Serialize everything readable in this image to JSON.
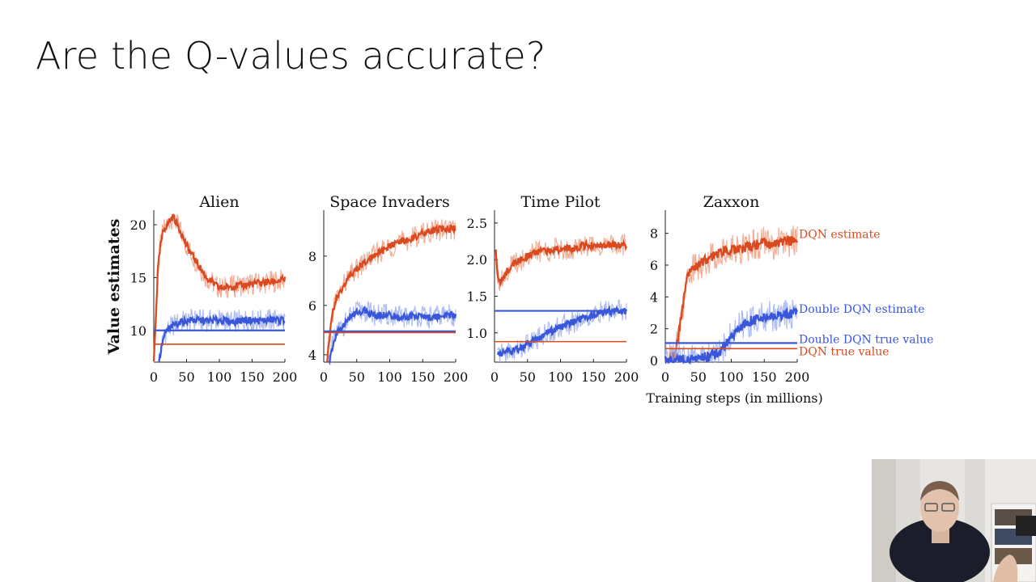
{
  "slide": {
    "title": "Are the Q-values accurate?"
  },
  "colors": {
    "dqn": "#d94a20",
    "dqn_light": "#f0a085",
    "ddqn": "#3b57d9",
    "ddqn_light": "#9fb0ee"
  },
  "chart_data": [
    {
      "type": "line",
      "title": "Alien",
      "ylabel": "Value estimates",
      "xlabel": "",
      "xlim": [
        0,
        200
      ],
      "ylim": [
        7,
        21
      ],
      "xticks": [
        0,
        50,
        100,
        150,
        200
      ],
      "yticks": [
        10,
        15,
        20
      ],
      "series": [
        {
          "name": "DQN estimate",
          "x": [
            0,
            3,
            6,
            10,
            15,
            20,
            25,
            30,
            40,
            50,
            60,
            70,
            80,
            90,
            100,
            120,
            140,
            160,
            180,
            200
          ],
          "values": [
            7,
            11,
            15.5,
            18,
            19.5,
            20,
            20.5,
            20.8,
            19.5,
            18,
            17,
            16,
            15,
            14.5,
            14,
            14.2,
            14.3,
            14.5,
            14.6,
            14.8
          ]
        },
        {
          "name": "Double DQN estimate",
          "x": [
            8,
            12,
            16,
            20,
            30,
            40,
            60,
            80,
            100,
            120,
            140,
            160,
            180,
            200
          ],
          "values": [
            7,
            8.5,
            9.5,
            10,
            10.5,
            10.8,
            11,
            10.9,
            11,
            10.8,
            11,
            10.9,
            11,
            11
          ]
        },
        {
          "name": "Double DQN true value",
          "x": [
            0,
            200
          ],
          "values": [
            10,
            10
          ]
        },
        {
          "name": "DQN true value",
          "x": [
            0,
            200
          ],
          "values": [
            8.7,
            8.7
          ]
        }
      ]
    },
    {
      "type": "line",
      "title": "Space Invaders",
      "ylabel": "",
      "xlabel": "",
      "xlim": [
        0,
        200
      ],
      "ylim": [
        3.7,
        9.7
      ],
      "xticks": [
        0,
        50,
        100,
        150,
        200
      ],
      "yticks": [
        4,
        6,
        8
      ],
      "series": [
        {
          "name": "DQN estimate",
          "x": [
            5,
            8,
            12,
            16,
            20,
            30,
            40,
            60,
            80,
            100,
            120,
            140,
            160,
            180,
            200
          ],
          "values": [
            3.7,
            4.5,
            5.5,
            6,
            6.3,
            6.8,
            7.2,
            7.7,
            8.1,
            8.4,
            8.6,
            8.8,
            9,
            9.1,
            9.1
          ]
        },
        {
          "name": "Double DQN estimate",
          "x": [
            8,
            12,
            16,
            20,
            30,
            40,
            50,
            60,
            70,
            80,
            100,
            120,
            140,
            160,
            180,
            200
          ],
          "values": [
            3.7,
            4.2,
            4.6,
            4.9,
            5.2,
            5.5,
            5.7,
            5.8,
            5.7,
            5.6,
            5.6,
            5.5,
            5.6,
            5.5,
            5.6,
            5.6
          ]
        },
        {
          "name": "Double DQN true value",
          "x": [
            0,
            200
          ],
          "values": [
            4.95,
            4.95
          ]
        },
        {
          "name": "DQN true value",
          "x": [
            0,
            200
          ],
          "values": [
            4.9,
            4.9
          ]
        }
      ]
    },
    {
      "type": "line",
      "title": "Time Pilot",
      "ylabel": "",
      "xlabel": "",
      "xlim": [
        0,
        200
      ],
      "ylim": [
        0.6,
        2.62
      ],
      "xticks": [
        0,
        50,
        100,
        150,
        200
      ],
      "yticks": [
        1.0,
        1.5,
        2.0,
        2.5
      ],
      "series": [
        {
          "name": "DQN estimate",
          "x": [
            2,
            4,
            8,
            12,
            16,
            20,
            30,
            40,
            60,
            80,
            100,
            120,
            140,
            160,
            180,
            200
          ],
          "values": [
            2.1,
            1.85,
            1.7,
            1.75,
            1.8,
            1.85,
            1.95,
            2,
            2.1,
            2.12,
            2.15,
            2.15,
            2.2,
            2.18,
            2.2,
            2.2
          ]
        },
        {
          "name": "Double DQN estimate",
          "x": [
            5,
            10,
            20,
            30,
            40,
            50,
            60,
            80,
            100,
            120,
            140,
            160,
            180,
            200
          ],
          "values": [
            0.7,
            0.72,
            0.75,
            0.75,
            0.8,
            0.85,
            0.9,
            1,
            1.08,
            1.15,
            1.22,
            1.27,
            1.3,
            1.3
          ]
        },
        {
          "name": "Double DQN true value",
          "x": [
            0,
            200
          ],
          "values": [
            1.3,
            1.3
          ]
        },
        {
          "name": "DQN true value",
          "x": [
            0,
            200
          ],
          "values": [
            0.88,
            0.88
          ]
        }
      ]
    },
    {
      "type": "line",
      "title": "Zaxxon",
      "ylabel": "",
      "xlabel": "Training steps (in millions)",
      "xlim": [
        0,
        200
      ],
      "ylim": [
        -0.1,
        9.2
      ],
      "xticks": [
        0,
        50,
        100,
        150,
        200
      ],
      "yticks": [
        0,
        2,
        4,
        6,
        8
      ],
      "series": [
        {
          "name": "DQN estimate",
          "label": "DQN estimate",
          "x": [
            0,
            10,
            15,
            20,
            25,
            30,
            35,
            40,
            50,
            60,
            70,
            80,
            90,
            100,
            110,
            120,
            130,
            140,
            150,
            160,
            170,
            180,
            190,
            200
          ],
          "values": [
            0,
            0.2,
            0.5,
            1.5,
            3,
            4.5,
            5.5,
            5.8,
            6,
            6.3,
            6.5,
            6.8,
            6.9,
            7,
            7,
            7.1,
            7.2,
            7.3,
            7.4,
            7.3,
            7.4,
            7.5,
            7.5,
            7.6
          ]
        },
        {
          "name": "Double DQN estimate",
          "label": "Double DQN estimate",
          "x": [
            0,
            20,
            40,
            60,
            70,
            80,
            90,
            100,
            110,
            120,
            130,
            140,
            150,
            160,
            170,
            180,
            190,
            200
          ],
          "values": [
            0,
            0.05,
            0.1,
            0.2,
            0.3,
            0.5,
            0.9,
            1.5,
            2,
            2.3,
            2.5,
            2.6,
            2.7,
            2.8,
            2.85,
            2.9,
            2.95,
            3
          ]
        },
        {
          "name": "Double DQN true value",
          "label": "Double DQN true value",
          "x": [
            0,
            200
          ],
          "values": [
            1.1,
            1.1
          ]
        },
        {
          "name": "DQN true value",
          "label": "DQN true value",
          "x": [
            0,
            200
          ],
          "values": [
            0.75,
            0.75
          ]
        }
      ]
    }
  ]
}
